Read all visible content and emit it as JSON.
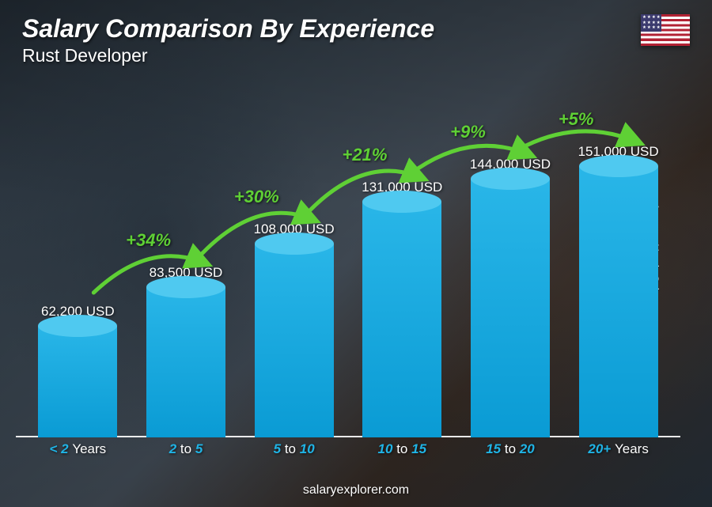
{
  "header": {
    "title": "Salary Comparison By Experience",
    "subtitle": "Rust Developer",
    "flag_country": "United States"
  },
  "yaxis_label": "Average Yearly Salary",
  "footer": "salaryexplorer.com",
  "chart": {
    "type": "bar",
    "currency": "USD",
    "max_value": 151000,
    "bar_top_color": "#4fc9f0",
    "bar_body_gradient_top": "#29b6e8",
    "bar_body_gradient_bottom": "#0a9bd4",
    "xlabel_accent_color": "#1fb4e6",
    "arrow_color": "#5fd035",
    "pct_color": "#5fd035",
    "value_text_color": "#ffffff",
    "bars": [
      {
        "category_pre": "< 2",
        "category_post": "Years",
        "value": 62200,
        "value_label": "62,200 USD"
      },
      {
        "category_pre": "2",
        "category_mid": "to",
        "category_post2": "5",
        "value": 83500,
        "value_label": "83,500 USD"
      },
      {
        "category_pre": "5",
        "category_mid": "to",
        "category_post2": "10",
        "value": 108000,
        "value_label": "108,000 USD"
      },
      {
        "category_pre": "10",
        "category_mid": "to",
        "category_post2": "15",
        "value": 131000,
        "value_label": "131,000 USD"
      },
      {
        "category_pre": "15",
        "category_mid": "to",
        "category_post2": "20",
        "value": 144000,
        "value_label": "144,000 USD"
      },
      {
        "category_pre": "20+",
        "category_post": "Years",
        "value": 151000,
        "value_label": "151,000 USD"
      }
    ],
    "increases": [
      {
        "pct": "+34%"
      },
      {
        "pct": "+30%"
      },
      {
        "pct": "+21%"
      },
      {
        "pct": "+9%"
      },
      {
        "pct": "+5%"
      }
    ]
  }
}
